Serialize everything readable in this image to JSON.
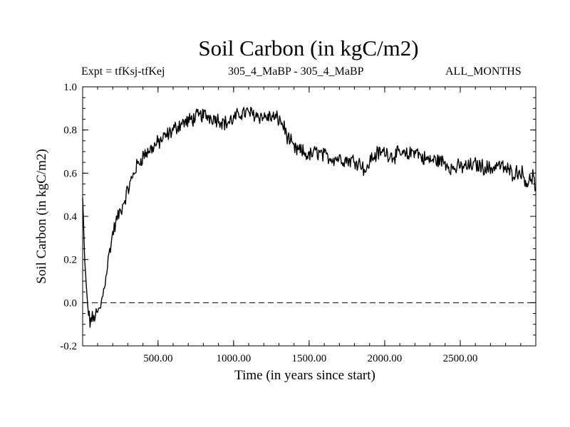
{
  "chart_data": {
    "type": "line",
    "title": "Soil Carbon (in kgC/m2)",
    "annotations": {
      "left": "Expt = tfKsj-tfKej",
      "center": "305_4_MaBP - 305_4_MaBP",
      "right": "ALL_MONTHS"
    },
    "xlabel": "Time (in years since start)",
    "ylabel": "Soil Carbon (in kgC/m2)",
    "xlim": [
      1,
      3000
    ],
    "ylim": [
      -0.2,
      1.0
    ],
    "x_ticks": [
      500,
      1000,
      1500,
      2000,
      2500
    ],
    "x_tick_labels": [
      "500.00",
      "1000.00",
      "1500.00",
      "2000.00",
      "2500.00"
    ],
    "y_ticks": [
      -0.2,
      0.0,
      0.2,
      0.4,
      0.6,
      0.8,
      1.0
    ],
    "y_tick_labels": [
      "-0.2",
      "0.0",
      "0.2",
      "0.4",
      "0.6",
      "0.8",
      "1.0"
    ],
    "reference_line": {
      "y": 0.0,
      "style": "dashed"
    },
    "series": [
      {
        "name": "Soil Carbon",
        "x": [
          1,
          10,
          20,
          30,
          40,
          50,
          60,
          70,
          80,
          100,
          120,
          140,
          160,
          180,
          200,
          230,
          260,
          300,
          350,
          400,
          450,
          500,
          550,
          600,
          650,
          700,
          750,
          800,
          850,
          900,
          950,
          1000,
          1050,
          1100,
          1150,
          1200,
          1250,
          1300,
          1330,
          1360,
          1380,
          1400,
          1450,
          1500,
          1550,
          1600,
          1650,
          1700,
          1750,
          1800,
          1850,
          1880,
          1900,
          1950,
          2000,
          2050,
          2100,
          2150,
          2200,
          2250,
          2300,
          2350,
          2400,
          2450,
          2500,
          2550,
          2600,
          2650,
          2700,
          2750,
          2800,
          2850,
          2900,
          2950,
          2980,
          3000
        ],
        "values": [
          0.48,
          0.28,
          0.12,
          0.02,
          -0.05,
          -0.09,
          -0.07,
          -0.08,
          -0.06,
          -0.05,
          -0.02,
          0.06,
          0.15,
          0.24,
          0.32,
          0.39,
          0.44,
          0.52,
          0.62,
          0.68,
          0.71,
          0.74,
          0.77,
          0.8,
          0.83,
          0.84,
          0.86,
          0.87,
          0.86,
          0.85,
          0.83,
          0.85,
          0.88,
          0.88,
          0.87,
          0.86,
          0.86,
          0.85,
          0.82,
          0.76,
          0.74,
          0.71,
          0.7,
          0.68,
          0.7,
          0.68,
          0.67,
          0.67,
          0.66,
          0.66,
          0.64,
          0.6,
          0.66,
          0.69,
          0.7,
          0.68,
          0.69,
          0.68,
          0.71,
          0.67,
          0.66,
          0.66,
          0.65,
          0.62,
          0.63,
          0.63,
          0.64,
          0.63,
          0.62,
          0.64,
          0.62,
          0.6,
          0.61,
          0.55,
          0.59,
          0.53
        ]
      }
    ]
  }
}
